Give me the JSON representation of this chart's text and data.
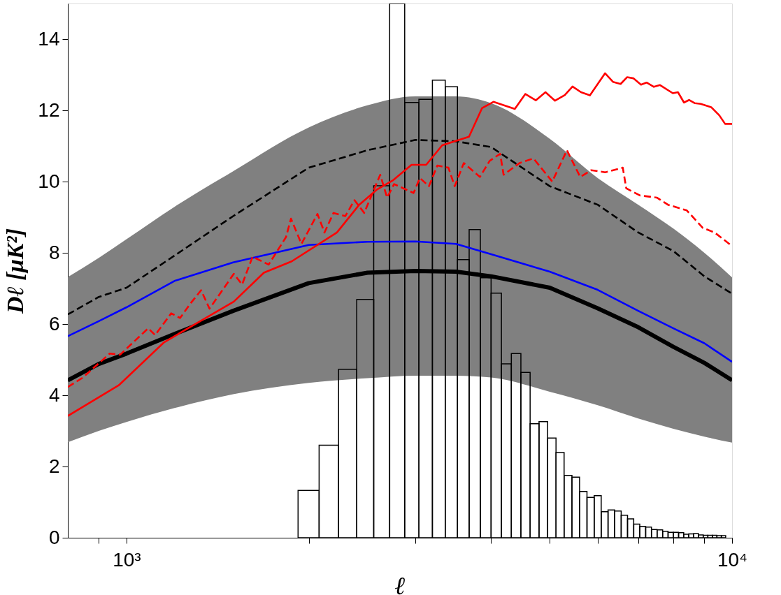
{
  "chart_data": {
    "type": "line",
    "xlabel": "ℓ",
    "ylabel": "Dℓ  [μK²]",
    "log": "x",
    "grid": false,
    "xlim": [
      800,
      10000
    ],
    "ylim": [
      0,
      15
    ],
    "xticks": [
      {
        "value": 900,
        "label": null
      },
      {
        "value": 1000,
        "label": "10³"
      },
      {
        "value": 2000,
        "label": null
      },
      {
        "value": 3000,
        "label": null
      },
      {
        "value": 4000,
        "label": null
      },
      {
        "value": 5000,
        "label": null
      },
      {
        "value": 6000,
        "label": null
      },
      {
        "value": 7000,
        "label": null
      },
      {
        "value": 8000,
        "label": null
      },
      {
        "value": 9000,
        "label": null
      },
      {
        "value": 10000,
        "label": "10⁴"
      }
    ],
    "yticks": [
      0,
      2,
      4,
      6,
      8,
      10,
      12,
      14
    ],
    "series": [
      {
        "color": "#000000",
        "line_style": "solid",
        "x": [
          800,
          900,
          1000,
          1200,
          1500,
          2000,
          2500,
          3000,
          3500,
          4000,
          5000,
          6000,
          7000,
          8000,
          9000,
          10000
        ],
        "values": [
          4.42,
          4.88,
          5.17,
          5.72,
          6.37,
          7.15,
          7.44,
          7.49,
          7.47,
          7.34,
          7.02,
          6.44,
          5.91,
          5.36,
          4.91,
          4.42
        ],
        "lower": [
          2.68,
          3.0,
          3.25,
          3.64,
          4.03,
          4.35,
          4.48,
          4.55,
          4.55,
          4.5,
          4.1,
          3.72,
          3.35,
          3.06,
          2.84,
          2.67
        ],
        "upper": [
          7.32,
          7.86,
          8.38,
          9.29,
          10.29,
          11.52,
          12.14,
          12.39,
          12.39,
          12.2,
          11.2,
          10.1,
          9.35,
          8.68,
          8.0,
          7.31
        ]
      },
      {
        "type": "histogram",
        "color": "#000000",
        "bins": [
          1920,
          2080,
          2240,
          2400,
          2560,
          2720,
          2880,
          3040,
          3200,
          3360,
          3520,
          3680,
          3840,
          4000,
          4160,
          4320,
          4480,
          4640,
          4800,
          4960,
          5120,
          5280,
          5440,
          5600,
          5760,
          5920,
          6080,
          6240,
          6400,
          6560,
          6720,
          6880,
          7040,
          7200,
          7360,
          7520,
          7680,
          7840,
          8000,
          8160,
          8320,
          8480,
          8640,
          8800,
          8960,
          9120,
          9280,
          9440,
          9600,
          9760
        ],
        "values": [
          1.33,
          2.6,
          4.73,
          6.69,
          9.88,
          15,
          12.22,
          12.31,
          12.85,
          12.66,
          7.81,
          8.65,
          7.3,
          6.87,
          4.88,
          5.17,
          4.64,
          3.2,
          3.26,
          2.8,
          2.39,
          1.75,
          1.7,
          1.3,
          1.13,
          1.18,
          0.73,
          0.78,
          0.75,
          0.63,
          0.53,
          0.38,
          0.32,
          0.3,
          0.23,
          0.22,
          0.18,
          0.15,
          0.15,
          0.14,
          0.1,
          0.11,
          0.12,
          0.08,
          0.07,
          0.07,
          0.07,
          0.06,
          0.06
        ]
      },
      {
        "color": "#0000ff",
        "line_style": "solid",
        "x": [
          800,
          900,
          1000,
          1200,
          1500,
          2000,
          2500,
          3000,
          3500,
          4000,
          5000,
          6000,
          7000,
          8000,
          9000,
          10000
        ],
        "values": [
          5.66,
          6.08,
          6.47,
          7.21,
          7.73,
          8.22,
          8.31,
          8.32,
          8.25,
          7.96,
          7.47,
          6.96,
          6.37,
          5.88,
          5.46,
          4.94
        ]
      },
      {
        "color": "#000000",
        "line_style": "dashed",
        "x": [
          800,
          900,
          1000,
          1200,
          1500,
          2000,
          2500,
          3000,
          3500,
          4000,
          5000,
          6000,
          7000,
          8000,
          9000,
          10000
        ],
        "values": [
          6.27,
          6.76,
          7.02,
          7.92,
          9.03,
          10.39,
          10.88,
          11.17,
          11.13,
          10.97,
          9.87,
          9.35,
          8.57,
          8.05,
          7.34,
          6.85
        ]
      },
      {
        "color": "#ff0000",
        "line_style": "solid",
        "x": [
          800,
          971,
          1154,
          1504,
          1686,
          1874,
          2226,
          2423,
          2589,
          2752,
          2956,
          3125,
          3322,
          3678,
          3864,
          4036,
          4378,
          4557,
          4741,
          4919,
          5101,
          5294,
          5452,
          5630,
          5825,
          6169,
          6358,
          6546,
          6708,
          6870,
          7073,
          7225,
          7428,
          7604,
          7984,
          8140,
          8329,
          8492,
          8683,
          8877,
          9236,
          9526,
          9739,
          10000
        ],
        "values": [
          3.42,
          4.28,
          5.49,
          6.63,
          7.44,
          7.76,
          8.57,
          9.35,
          9.77,
          10.03,
          10.47,
          10.47,
          11.02,
          11.26,
          12.06,
          12.24,
          12.04,
          12.46,
          12.28,
          12.51,
          12.27,
          12.43,
          12.67,
          12.51,
          12.42,
          13.04,
          12.8,
          12.74,
          12.93,
          12.9,
          12.72,
          12.78,
          12.66,
          12.71,
          12.48,
          12.51,
          12.22,
          12.29,
          12.2,
          12.18,
          12.09,
          11.86,
          11.62,
          11.62
        ]
      },
      {
        "color": "#ff0000",
        "line_style": "dashed",
        "x": [
          800,
          846,
          938,
          976,
          1086,
          1115,
          1185,
          1226,
          1273,
          1328,
          1371,
          1504,
          1552,
          1615,
          1717,
          1834,
          1869,
          1945,
          2067,
          2123,
          2197,
          2298,
          2379,
          2469,
          2624,
          2694,
          2766,
          2979,
          3051,
          3158,
          3261,
          3401,
          3483,
          3606,
          3833,
          3978,
          4140,
          4195,
          4457,
          4699,
          5048,
          5337,
          5613,
          5855,
          6173,
          6600,
          6688,
          7046,
          7510,
          7837,
          8419,
          8947,
          9358,
          9947
        ],
        "values": [
          4.23,
          4.49,
          5.17,
          5.14,
          5.88,
          5.69,
          6.3,
          6.17,
          6.56,
          6.95,
          6.43,
          7.41,
          7.11,
          7.89,
          7.67,
          8.44,
          8.96,
          8.25,
          9.09,
          8.57,
          9.12,
          9.03,
          9.48,
          9.12,
          10.19,
          9.55,
          9.93,
          9.68,
          10.1,
          9.87,
          10.45,
          10.39,
          9.87,
          10.52,
          10.13,
          10.58,
          10.78,
          10.19,
          10.52,
          10.65,
          10.0,
          10.88,
          10.13,
          10.32,
          10.26,
          10.39,
          9.81,
          9.61,
          9.55,
          9.35,
          9.19,
          8.7,
          8.57,
          8.22
        ]
      }
    ]
  }
}
